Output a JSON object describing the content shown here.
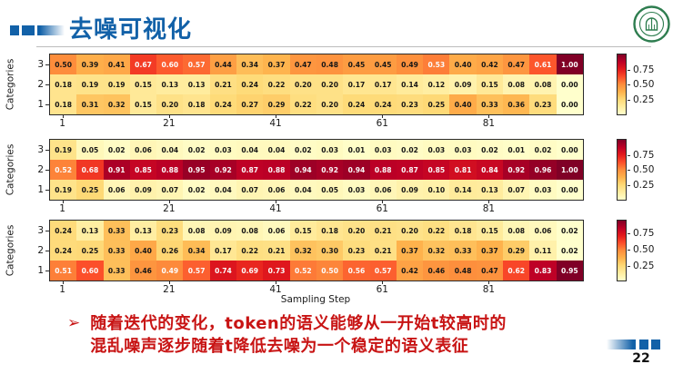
{
  "slide": {
    "title": "去噪可视化",
    "page_number": "22",
    "accent_color": "#1261A8"
  },
  "logo": {
    "label": "sun-yat-sen-university-seal",
    "color": "#2E7D4F"
  },
  "takeaway": {
    "bullet": "➢",
    "line1": "随着迭代的变化，token的语义能够从一开始t较高时的",
    "line2": "混乱噪声逐步随着t降低去噪为一个稳定的语义表征",
    "color": "#C81414"
  },
  "chart_data": [
    {
      "type": "heatmap",
      "colormap": "YlOrRd",
      "ylabel": "Categories",
      "y_categories": [
        "3",
        "2",
        "1"
      ],
      "x_tick_labels": [
        "1",
        "21",
        "41",
        "61",
        "81"
      ],
      "x_tick_columns": [
        1,
        5,
        9,
        13,
        17
      ],
      "n_cols": 20,
      "xlabel": "",
      "colorbar_ticks": [
        0.75,
        0.5,
        0.25
      ],
      "rows": [
        [
          0.5,
          0.39,
          0.41,
          0.67,
          0.6,
          0.57,
          0.44,
          0.34,
          0.37,
          0.47,
          0.48,
          0.45,
          0.45,
          0.49,
          0.53,
          0.4,
          0.42,
          0.47,
          0.61,
          1.0
        ],
        [
          0.18,
          0.19,
          0.19,
          0.15,
          0.13,
          0.13,
          0.21,
          0.24,
          0.22,
          0.2,
          0.2,
          0.17,
          0.17,
          0.14,
          0.12,
          0.09,
          0.15,
          0.08,
          0.08,
          0.0
        ],
        [
          0.18,
          0.31,
          0.32,
          0.15,
          0.2,
          0.18,
          0.24,
          0.27,
          0.29,
          0.22,
          0.2,
          0.24,
          0.24,
          0.23,
          0.25,
          0.4,
          0.33,
          0.36,
          0.23,
          0.0
        ]
      ]
    },
    {
      "type": "heatmap",
      "colormap": "YlOrRd",
      "ylabel": "Categories",
      "y_categories": [
        "3",
        "2",
        "1"
      ],
      "x_tick_labels": [
        "1",
        "21",
        "41",
        "61",
        "81"
      ],
      "x_tick_columns": [
        1,
        5,
        9,
        13,
        17
      ],
      "n_cols": 20,
      "xlabel": "",
      "colorbar_ticks": [
        0.75,
        0.5,
        0.25
      ],
      "rows": [
        [
          0.19,
          0.05,
          0.02,
          0.06,
          0.04,
          0.02,
          0.03,
          0.04,
          0.04,
          0.02,
          0.03,
          0.01,
          0.03,
          0.02,
          0.03,
          0.03,
          0.02,
          0.01,
          0.02,
          0.0
        ],
        [
          0.52,
          0.68,
          0.91,
          0.85,
          0.88,
          0.95,
          0.92,
          0.87,
          0.88,
          0.94,
          0.92,
          0.94,
          0.88,
          0.87,
          0.85,
          0.81,
          0.84,
          0.92,
          0.96,
          1.0
        ],
        [
          0.19,
          0.25,
          0.06,
          0.09,
          0.07,
          0.02,
          0.04,
          0.07,
          0.06,
          0.04,
          0.05,
          0.03,
          0.06,
          0.09,
          0.1,
          0.14,
          0.13,
          0.07,
          0.03,
          0.0
        ]
      ]
    },
    {
      "type": "heatmap",
      "colormap": "YlOrRd",
      "ylabel": "Categories",
      "y_categories": [
        "3",
        "2",
        "1"
      ],
      "x_tick_labels": [
        "1",
        "21",
        "41",
        "61",
        "81"
      ],
      "x_tick_columns": [
        1,
        5,
        9,
        13,
        17
      ],
      "n_cols": 20,
      "xlabel": "Sampling Step",
      "colorbar_ticks": [
        0.75,
        0.5,
        0.25
      ],
      "rows": [
        [
          0.24,
          0.13,
          0.33,
          0.13,
          0.23,
          0.08,
          0.09,
          0.08,
          0.06,
          0.15,
          0.18,
          0.2,
          0.21,
          0.2,
          0.22,
          0.18,
          0.15,
          0.08,
          0.06,
          0.02
        ],
        [
          0.24,
          0.25,
          0.33,
          0.4,
          0.26,
          0.34,
          0.17,
          0.22,
          0.21,
          0.32,
          0.3,
          0.23,
          0.21,
          0.37,
          0.32,
          0.33,
          0.37,
          0.29,
          0.11,
          0.02
        ],
        [
          0.51,
          0.6,
          0.33,
          0.46,
          0.49,
          0.57,
          0.74,
          0.69,
          0.73,
          0.52,
          0.5,
          0.56,
          0.57,
          0.42,
          0.46,
          0.48,
          0.47,
          0.62,
          0.83,
          0.95
        ]
      ]
    }
  ]
}
